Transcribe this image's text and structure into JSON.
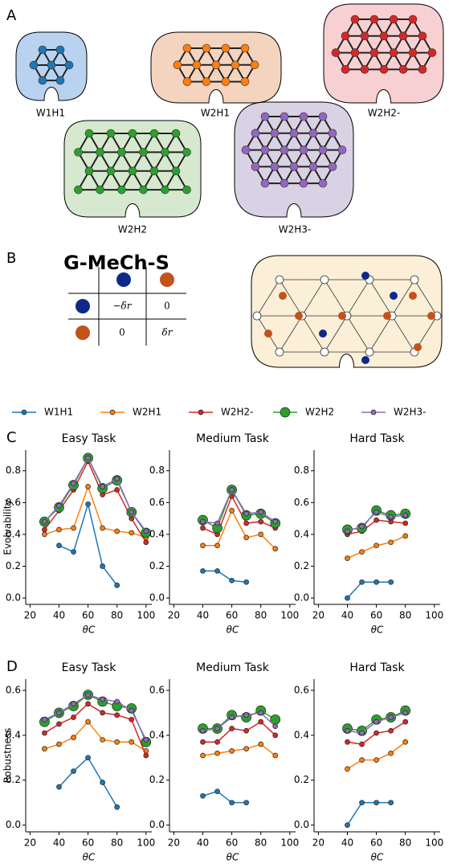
{
  "panel_labels": [
    "A",
    "B",
    "C",
    "D"
  ],
  "networks": [
    "W1H1",
    "W2H1",
    "W2H2-",
    "W2H2",
    "W2H3-"
  ],
  "model": {
    "title": "G-MeCh-S",
    "table": [
      [
        "−δr",
        "0"
      ],
      [
        "0",
        "δr"
      ]
    ]
  },
  "chart_data": [
    {
      "type": "line",
      "title": "Easy Task",
      "xlabel": "θC",
      "ylabel": "Evolvability",
      "xlim": [
        17,
        104
      ],
      "xticks": [
        20,
        40,
        60,
        80,
        100
      ],
      "ylim": [
        -0.04,
        0.93
      ],
      "yticks": [
        {
          "value": 0,
          "label": "0.0"
        },
        0.2,
        0.4,
        0.6,
        0.8
      ],
      "series": [
        {
          "name": "W1H1",
          "color": "#1f77b4",
          "x": [
            40,
            50,
            60,
            70,
            80
          ],
          "values": [
            0.33,
            0.29,
            0.59,
            0.2,
            0.08
          ]
        },
        {
          "name": "W2H1",
          "color": "#ff7f0e",
          "x": [
            30,
            40,
            50,
            60,
            70,
            80,
            90,
            100
          ],
          "values": [
            0.4,
            0.43,
            0.44,
            0.7,
            0.44,
            0.42,
            0.41,
            0.38
          ]
        },
        {
          "name": "W2H2-",
          "color": "#d62728",
          "x": [
            30,
            40,
            50,
            60,
            70,
            80,
            90,
            100
          ],
          "values": [
            0.43,
            0.55,
            0.68,
            0.86,
            0.65,
            0.68,
            0.5,
            0.35
          ]
        },
        {
          "name": "W2H2",
          "color": "#2ca02c",
          "x": [
            30,
            40,
            50,
            60,
            70,
            80,
            90,
            100
          ],
          "values": [
            0.48,
            0.57,
            0.71,
            0.88,
            0.69,
            0.74,
            0.54,
            0.41
          ]
        },
        {
          "name": "W2H3-",
          "color": "#9467bd",
          "x": [
            30,
            40,
            50,
            60,
            70,
            80,
            90,
            100
          ],
          "values": [
            0.48,
            0.58,
            0.72,
            0.88,
            0.7,
            0.75,
            0.54,
            0.42
          ]
        }
      ]
    },
    {
      "type": "line",
      "title": "Medium Task",
      "xlabel": "θC",
      "xlim": [
        17,
        104
      ],
      "xticks": [
        20,
        40,
        60,
        80,
        100
      ],
      "ylim": [
        -0.04,
        0.93
      ],
      "yticks": [
        {
          "value": 0,
          "label": "0.0"
        },
        0.2,
        0.4,
        0.6,
        0.8
      ],
      "series": [
        {
          "name": "W1H1",
          "color": "#1f77b4",
          "x": [
            40,
            50,
            60,
            70
          ],
          "values": [
            0.17,
            0.17,
            0.11,
            0.1
          ]
        },
        {
          "name": "W2H1",
          "color": "#ff7f0e",
          "x": [
            40,
            50,
            60,
            70,
            80,
            90
          ],
          "values": [
            0.33,
            0.33,
            0.55,
            0.38,
            0.4,
            0.31
          ]
        },
        {
          "name": "W2H2-",
          "color": "#d62728",
          "x": [
            40,
            50,
            60,
            70,
            80,
            90
          ],
          "values": [
            0.44,
            0.4,
            0.64,
            0.47,
            0.48,
            0.44
          ]
        },
        {
          "name": "W2H2",
          "color": "#2ca02c",
          "x": [
            40,
            50,
            60,
            70,
            80,
            90
          ],
          "values": [
            0.49,
            0.44,
            0.68,
            0.52,
            0.53,
            0.47
          ]
        },
        {
          "name": "W2H3-",
          "color": "#9467bd",
          "x": [
            40,
            50,
            60,
            70,
            80,
            90
          ],
          "values": [
            0.48,
            0.47,
            0.68,
            0.53,
            0.54,
            0.48
          ]
        }
      ]
    },
    {
      "type": "line",
      "title": "Hard Task",
      "xlabel": "θC",
      "xlim": [
        17,
        104
      ],
      "xticks": [
        20,
        40,
        60,
        80,
        100
      ],
      "ylim": [
        -0.04,
        0.93
      ],
      "yticks": [
        {
          "value": 0,
          "label": "0.0"
        },
        0.2,
        0.4,
        0.6,
        0.8
      ],
      "series": [
        {
          "name": "W1H1",
          "color": "#1f77b4",
          "x": [
            40,
            50,
            60,
            70
          ],
          "values": [
            0,
            0.1,
            0.1,
            0.1
          ]
        },
        {
          "name": "W2H1",
          "color": "#ff7f0e",
          "x": [
            40,
            50,
            60,
            70,
            80
          ],
          "values": [
            0.25,
            0.29,
            0.33,
            0.35,
            0.39
          ]
        },
        {
          "name": "W2H2-",
          "color": "#d62728",
          "x": [
            40,
            50,
            60,
            70,
            80
          ],
          "values": [
            0.4,
            0.42,
            0.49,
            0.48,
            0.47
          ]
        },
        {
          "name": "W2H2",
          "color": "#2ca02c",
          "x": [
            40,
            50,
            60,
            70,
            80
          ],
          "values": [
            0.43,
            0.44,
            0.55,
            0.52,
            0.53
          ]
        },
        {
          "name": "W2H3-",
          "color": "#9467bd",
          "x": [
            40,
            50,
            60,
            70,
            80
          ],
          "values": [
            0.42,
            0.45,
            0.54,
            0.51,
            0.52
          ]
        }
      ]
    },
    {
      "type": "line",
      "title": "Easy Task",
      "xlabel": "θC",
      "ylabel": "Robustness",
      "xlim": [
        17,
        104
      ],
      "xticks": [
        20,
        40,
        60,
        80,
        100
      ],
      "ylim": [
        -0.03,
        0.65
      ],
      "yticks": [
        {
          "value": 0,
          "label": "0.0"
        },
        0.2,
        0.4,
        0.6
      ],
      "series": [
        {
          "name": "W1H1",
          "color": "#1f77b4",
          "x": [
            40,
            50,
            60,
            70,
            80
          ],
          "values": [
            0.17,
            0.24,
            0.3,
            0.19,
            0.08
          ]
        },
        {
          "name": "W2H1",
          "color": "#ff7f0e",
          "x": [
            30,
            40,
            50,
            60,
            70,
            80,
            90,
            100
          ],
          "values": [
            0.34,
            0.36,
            0.39,
            0.46,
            0.38,
            0.37,
            0.37,
            0.33
          ]
        },
        {
          "name": "W2H2-",
          "color": "#d62728",
          "x": [
            30,
            40,
            50,
            60,
            70,
            80,
            90,
            100
          ],
          "values": [
            0.41,
            0.45,
            0.48,
            0.54,
            0.5,
            0.49,
            0.47,
            0.31
          ]
        },
        {
          "name": "W2H2",
          "color": "#2ca02c",
          "x": [
            30,
            40,
            50,
            60,
            70,
            80,
            90,
            100
          ],
          "values": [
            0.46,
            0.5,
            0.53,
            0.58,
            0.55,
            0.53,
            0.52,
            0.37
          ]
        },
        {
          "name": "W2H3-",
          "color": "#9467bd",
          "x": [
            30,
            40,
            50,
            60,
            70,
            80,
            90,
            100
          ],
          "values": [
            0.47,
            0.5,
            0.54,
            0.58,
            0.56,
            0.55,
            0.51,
            0.38
          ]
        }
      ]
    },
    {
      "type": "line",
      "title": "Medium Task",
      "xlabel": "θC",
      "xlim": [
        17,
        104
      ],
      "xticks": [
        20,
        40,
        60,
        80,
        100
      ],
      "ylim": [
        -0.03,
        0.65
      ],
      "yticks": [
        {
          "value": 0,
          "label": "0.0"
        },
        0.2,
        0.4,
        0.6
      ],
      "series": [
        {
          "name": "W1H1",
          "color": "#1f77b4",
          "x": [
            40,
            50,
            60,
            70
          ],
          "values": [
            0.13,
            0.15,
            0.1,
            0.1
          ]
        },
        {
          "name": "W2H1",
          "color": "#ff7f0e",
          "x": [
            40,
            50,
            60,
            70,
            80,
            90
          ],
          "values": [
            0.31,
            0.32,
            0.33,
            0.34,
            0.36,
            0.31
          ]
        },
        {
          "name": "W2H2-",
          "color": "#d62728",
          "x": [
            40,
            50,
            60,
            70,
            80,
            90
          ],
          "values": [
            0.37,
            0.37,
            0.43,
            0.42,
            0.46,
            0.4
          ]
        },
        {
          "name": "W2H2",
          "color": "#2ca02c",
          "x": [
            40,
            50,
            60,
            70,
            80,
            90
          ],
          "values": [
            0.43,
            0.43,
            0.49,
            0.48,
            0.51,
            0.47
          ]
        },
        {
          "name": "W2H3-",
          "color": "#9467bd",
          "x": [
            40,
            50,
            60,
            70,
            80,
            90
          ],
          "values": [
            0.42,
            0.43,
            0.48,
            0.49,
            0.5,
            0.44
          ]
        }
      ]
    },
    {
      "type": "line",
      "title": "Hard Task",
      "xlabel": "θC",
      "xlim": [
        17,
        104
      ],
      "xticks": [
        20,
        40,
        60,
        80,
        100
      ],
      "ylim": [
        -0.03,
        0.65
      ],
      "yticks": [
        {
          "value": 0,
          "label": "0.0"
        },
        0.2,
        0.4,
        0.6
      ],
      "series": [
        {
          "name": "W1H1",
          "color": "#1f77b4",
          "x": [
            40,
            50,
            60,
            70
          ],
          "values": [
            0,
            0.1,
            0.1,
            0.1
          ]
        },
        {
          "name": "W2H1",
          "color": "#ff7f0e",
          "x": [
            40,
            50,
            60,
            70,
            80
          ],
          "values": [
            0.25,
            0.29,
            0.29,
            0.32,
            0.37
          ]
        },
        {
          "name": "W2H2-",
          "color": "#d62728",
          "x": [
            40,
            50,
            60,
            70,
            80
          ],
          "values": [
            0.37,
            0.36,
            0.41,
            0.42,
            0.46
          ]
        },
        {
          "name": "W2H2",
          "color": "#2ca02c",
          "x": [
            40,
            50,
            60,
            70,
            80
          ],
          "values": [
            0.43,
            0.42,
            0.47,
            0.48,
            0.51
          ]
        },
        {
          "name": "W2H3-",
          "color": "#9467bd",
          "x": [
            40,
            50,
            60,
            70,
            80
          ],
          "values": [
            0.42,
            0.41,
            0.46,
            0.48,
            0.5
          ]
        }
      ]
    }
  ]
}
